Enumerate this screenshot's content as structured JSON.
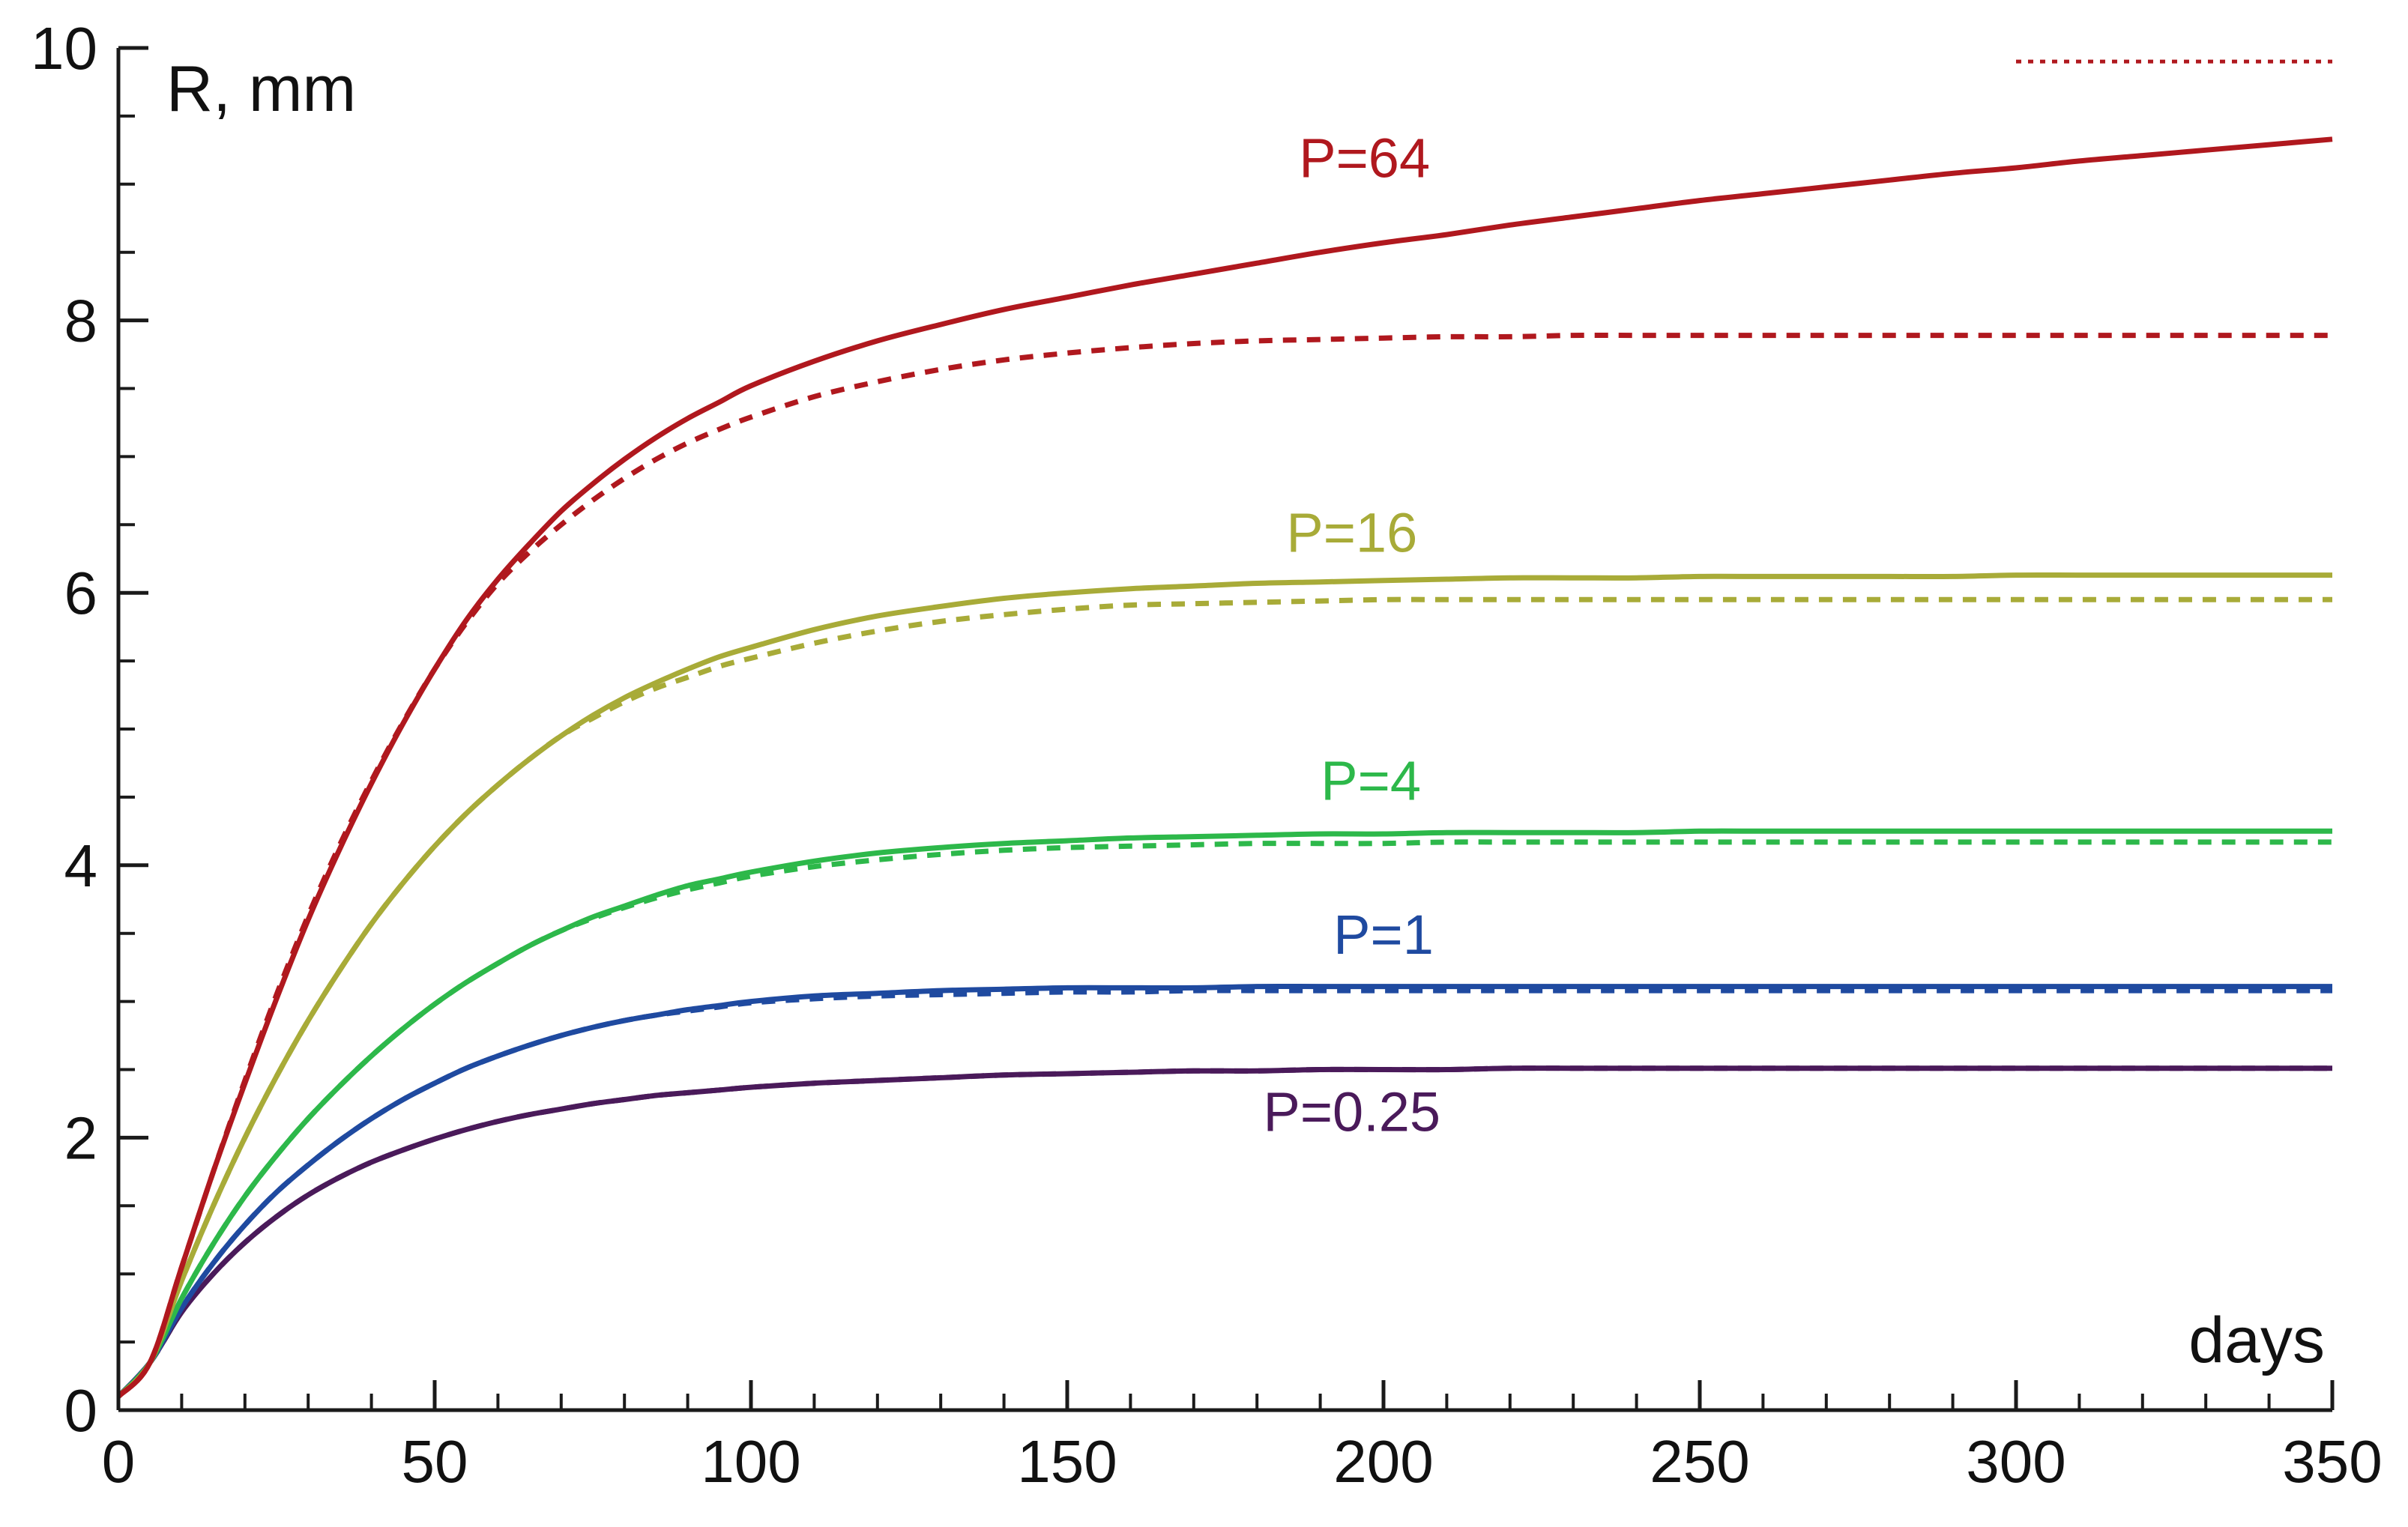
{
  "chart_data": {
    "type": "line",
    "title": "",
    "xlabel": "days",
    "ylabel": "R, mm",
    "xlim": [
      0,
      350
    ],
    "ylim": [
      0,
      10
    ],
    "x_ticks": [
      0,
      50,
      100,
      150,
      200,
      250,
      300,
      350
    ],
    "x_tick_labels": [
      "0",
      "50",
      "100",
      "150",
      "200",
      "250",
      "300",
      "350"
    ],
    "y_ticks": [
      0,
      2,
      4,
      6,
      8,
      10
    ],
    "y_tick_labels": [
      "0",
      "2",
      "4",
      "6",
      "8",
      "10"
    ],
    "x_minor_step": 10,
    "y_minor_step": 0.5,
    "grid": false,
    "legend": "none",
    "x": [
      0,
      5,
      10,
      15,
      20,
      25,
      30,
      35,
      40,
      45,
      50,
      55,
      60,
      65,
      70,
      75,
      80,
      85,
      90,
      95,
      100,
      110,
      120,
      130,
      140,
      150,
      160,
      170,
      180,
      190,
      200,
      210,
      220,
      230,
      240,
      250,
      260,
      270,
      280,
      290,
      300,
      310,
      320,
      330,
      340,
      350
    ],
    "series": [
      {
        "name": "P=0.25",
        "label": "P=0.25",
        "color": "#4a1a5a",
        "label_pos": [
          195,
          2.05
        ],
        "solid": [
          0.1,
          0.35,
          0.72,
          1.0,
          1.23,
          1.42,
          1.58,
          1.71,
          1.82,
          1.91,
          1.99,
          2.06,
          2.12,
          2.17,
          2.21,
          2.25,
          2.28,
          2.31,
          2.33,
          2.35,
          2.37,
          2.4,
          2.42,
          2.44,
          2.46,
          2.47,
          2.48,
          2.49,
          2.49,
          2.5,
          2.5,
          2.5,
          2.51,
          2.51,
          2.51,
          2.51,
          2.51,
          2.51,
          2.51,
          2.51,
          2.51,
          2.51,
          2.51,
          2.51,
          2.51,
          2.51
        ],
        "dashed": [
          0.1,
          0.35,
          0.72,
          1.0,
          1.23,
          1.42,
          1.58,
          1.71,
          1.82,
          1.91,
          1.99,
          2.06,
          2.12,
          2.17,
          2.21,
          2.25,
          2.28,
          2.31,
          2.33,
          2.35,
          2.37,
          2.4,
          2.42,
          2.44,
          2.46,
          2.47,
          2.48,
          2.49,
          2.49,
          2.5,
          2.5,
          2.5,
          2.51,
          2.51,
          2.51,
          2.51,
          2.51,
          2.51,
          2.51,
          2.51,
          2.51,
          2.51,
          2.51,
          2.51,
          2.51,
          2.51
        ]
      },
      {
        "name": "P=1",
        "label": "P=1",
        "color": "#1f4aa0",
        "label_pos": [
          200,
          3.35
        ],
        "solid": [
          0.1,
          0.35,
          0.75,
          1.08,
          1.36,
          1.6,
          1.8,
          1.98,
          2.14,
          2.28,
          2.4,
          2.51,
          2.6,
          2.68,
          2.75,
          2.81,
          2.86,
          2.9,
          2.94,
          2.97,
          3.0,
          3.04,
          3.06,
          3.08,
          3.09,
          3.1,
          3.1,
          3.1,
          3.11,
          3.11,
          3.11,
          3.11,
          3.11,
          3.11,
          3.11,
          3.11,
          3.11,
          3.11,
          3.11,
          3.11,
          3.11,
          3.11,
          3.11,
          3.11,
          3.11,
          3.11
        ],
        "dashed": [
          0.1,
          0.35,
          0.75,
          1.08,
          1.36,
          1.6,
          1.8,
          1.98,
          2.14,
          2.28,
          2.4,
          2.51,
          2.6,
          2.68,
          2.75,
          2.81,
          2.86,
          2.9,
          2.93,
          2.96,
          2.99,
          3.02,
          3.04,
          3.05,
          3.06,
          3.07,
          3.07,
          3.08,
          3.08,
          3.08,
          3.08,
          3.08,
          3.08,
          3.08,
          3.08,
          3.08,
          3.08,
          3.08,
          3.08,
          3.08,
          3.08,
          3.08,
          3.08,
          3.08,
          3.08,
          3.08
        ]
      },
      {
        "name": "P=4",
        "label": "P=4",
        "color": "#2db84a",
        "label_pos": [
          198,
          4.48
        ],
        "solid": [
          0.1,
          0.35,
          0.82,
          1.22,
          1.57,
          1.87,
          2.14,
          2.38,
          2.6,
          2.8,
          2.98,
          3.14,
          3.28,
          3.41,
          3.52,
          3.62,
          3.7,
          3.78,
          3.85,
          3.9,
          3.95,
          4.03,
          4.09,
          4.13,
          4.16,
          4.18,
          4.2,
          4.21,
          4.22,
          4.23,
          4.23,
          4.24,
          4.24,
          4.24,
          4.24,
          4.25,
          4.25,
          4.25,
          4.25,
          4.25,
          4.25,
          4.25,
          4.25,
          4.25,
          4.25,
          4.25
        ],
        "dashed": [
          0.1,
          0.35,
          0.82,
          1.22,
          1.57,
          1.87,
          2.14,
          2.38,
          2.6,
          2.8,
          2.98,
          3.14,
          3.28,
          3.41,
          3.52,
          3.61,
          3.69,
          3.76,
          3.82,
          3.87,
          3.92,
          3.99,
          4.04,
          4.08,
          4.11,
          4.13,
          4.14,
          4.15,
          4.16,
          4.16,
          4.16,
          4.17,
          4.17,
          4.17,
          4.17,
          4.17,
          4.17,
          4.17,
          4.17,
          4.17,
          4.17,
          4.17,
          4.17,
          4.17,
          4.17,
          4.17
        ]
      },
      {
        "name": "P=16",
        "label": "P=16",
        "color": "#a8ab38",
        "label_pos": [
          195,
          6.3
        ],
        "solid": [
          0.1,
          0.35,
          0.95,
          1.5,
          2.0,
          2.45,
          2.86,
          3.23,
          3.57,
          3.87,
          4.14,
          4.38,
          4.59,
          4.78,
          4.95,
          5.1,
          5.23,
          5.34,
          5.44,
          5.53,
          5.6,
          5.73,
          5.83,
          5.9,
          5.96,
          6.0,
          6.03,
          6.05,
          6.07,
          6.08,
          6.09,
          6.1,
          6.11,
          6.11,
          6.11,
          6.12,
          6.12,
          6.12,
          6.12,
          6.12,
          6.13,
          6.13,
          6.13,
          6.13,
          6.13,
          6.13
        ],
        "dashed": [
          0.1,
          0.35,
          0.95,
          1.5,
          2.0,
          2.45,
          2.86,
          3.23,
          3.57,
          3.87,
          4.14,
          4.38,
          4.59,
          4.78,
          4.95,
          5.08,
          5.2,
          5.3,
          5.38,
          5.46,
          5.52,
          5.63,
          5.72,
          5.79,
          5.84,
          5.88,
          5.91,
          5.92,
          5.93,
          5.94,
          5.95,
          5.95,
          5.95,
          5.95,
          5.95,
          5.95,
          5.95,
          5.95,
          5.95,
          5.95,
          5.95,
          5.95,
          5.95,
          5.95,
          5.95,
          5.95
        ]
      },
      {
        "name": "P=64",
        "label": "P=64",
        "color": "#b0181e",
        "label_pos": [
          197,
          9.05
        ],
        "solid": [
          0.1,
          0.35,
          1.05,
          1.75,
          2.4,
          3.02,
          3.6,
          4.12,
          4.6,
          5.04,
          5.44,
          5.8,
          6.1,
          6.36,
          6.6,
          6.8,
          6.98,
          7.14,
          7.28,
          7.4,
          7.52,
          7.7,
          7.85,
          7.97,
          8.08,
          8.17,
          8.26,
          8.34,
          8.42,
          8.5,
          8.57,
          8.63,
          8.7,
          8.76,
          8.82,
          8.88,
          8.93,
          8.98,
          9.03,
          9.08,
          9.12,
          9.17,
          9.21,
          9.25,
          9.29,
          9.33
        ],
        "dashed": [
          0.1,
          0.35,
          1.05,
          1.75,
          2.42,
          3.05,
          3.63,
          4.15,
          4.62,
          5.05,
          5.44,
          5.78,
          6.07,
          6.3,
          6.5,
          6.68,
          6.84,
          6.98,
          7.1,
          7.2,
          7.29,
          7.44,
          7.55,
          7.64,
          7.71,
          7.76,
          7.8,
          7.83,
          7.85,
          7.86,
          7.87,
          7.88,
          7.88,
          7.89,
          7.89,
          7.89,
          7.89,
          7.89,
          7.89,
          7.89,
          7.89,
          7.89,
          7.89,
          7.89,
          7.89,
          7.89
        ],
        "dotted": {
          "x": [
            300,
            350
          ],
          "y": [
            9.9,
            9.9
          ]
        }
      }
    ]
  }
}
